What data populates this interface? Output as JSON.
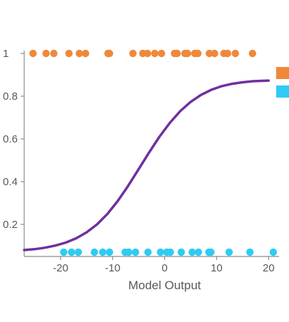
{
  "chart_data": {
    "type": "scatter",
    "xlabel": "Model Output",
    "ylabel": "",
    "xlim": [
      -27,
      22
    ],
    "ylim": [
      0.05,
      1.05
    ],
    "x_ticks": [
      -20,
      -10,
      0,
      10,
      20
    ],
    "y_ticks": [
      0.2,
      0.4,
      0.6,
      0.8,
      1
    ],
    "x_tick_labels": [
      "-20",
      "-10",
      "0",
      "10",
      "20"
    ],
    "y_tick_labels": [
      "0.2",
      "0.4",
      "0.6",
      "0.8",
      "1"
    ],
    "grid": false,
    "legend_position": "right",
    "series": [
      {
        "kind": "points",
        "color": "#F0883A",
        "x": [
          -25.3,
          -22.8,
          -21.3,
          -18.4,
          -16.4,
          -15.2,
          -10.9,
          -10.6,
          -6.1,
          -4.2,
          -3.3,
          -1.9,
          -0.6,
          1.9,
          2.4,
          3.9,
          4.4,
          5.8,
          6.4,
          8.6,
          9.6,
          11.4,
          12.1,
          13.6,
          16.9
        ],
        "y": [
          1,
          1,
          1,
          1,
          1,
          1,
          1,
          1,
          1,
          1,
          1,
          1,
          1,
          1,
          1,
          1,
          1,
          1,
          1,
          1,
          1,
          1,
          1,
          1,
          1
        ]
      },
      {
        "kind": "points",
        "color": "#2FCBF4",
        "x": [
          -19.4,
          -17.9,
          -16.6,
          -13.5,
          -11.9,
          -10.6,
          -7.6,
          -6.9,
          -5.6,
          -3.2,
          -0.8,
          0.4,
          1.1,
          3.2,
          5.3,
          6.5,
          8.5,
          8.9,
          12.4,
          16.4,
          20.9
        ],
        "y": [
          0.07,
          0.07,
          0.07,
          0.07,
          0.07,
          0.07,
          0.07,
          0.07,
          0.07,
          0.07,
          0.07,
          0.07,
          0.07,
          0.07,
          0.07,
          0.07,
          0.07,
          0.07,
          0.07,
          0.07,
          0.07
        ]
      },
      {
        "kind": "line",
        "color": "#7030A0",
        "x": [
          -27,
          -25,
          -23,
          -21,
          -19,
          -17,
          -15,
          -13,
          -11,
          -9,
          -7,
          -5,
          -3,
          -1,
          1,
          3,
          5,
          7,
          9,
          11,
          13,
          15,
          17,
          19,
          20
        ],
        "y": [
          0.08,
          0.084,
          0.091,
          0.101,
          0.115,
          0.135,
          0.163,
          0.2,
          0.249,
          0.31,
          0.381,
          0.458,
          0.536,
          0.61,
          0.675,
          0.73,
          0.773,
          0.806,
          0.83,
          0.847,
          0.858,
          0.865,
          0.87,
          0.872,
          0.873
        ]
      }
    ],
    "legend_markers": [
      {
        "color": "#F0883A"
      },
      {
        "color": "#2FCBF4"
      }
    ]
  }
}
